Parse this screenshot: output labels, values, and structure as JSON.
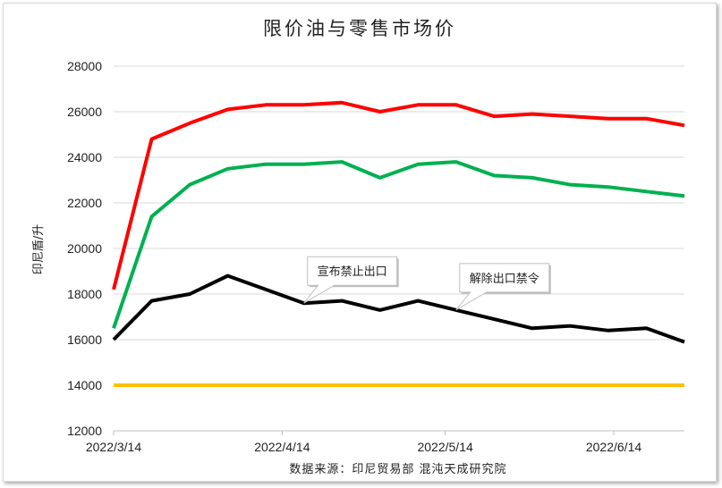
{
  "chart_data": {
    "type": "line",
    "title": "限价油与零售市场价",
    "ylabel": "印尼盾/升",
    "source": "数据来源：印尼贸易部 混沌天成研究院",
    "ylim": [
      12000,
      28000
    ],
    "yticks": [
      12000,
      14000,
      16000,
      18000,
      20000,
      22000,
      24000,
      26000,
      28000
    ],
    "x": [
      "2022-03-14",
      "2022-03-21",
      "2022-03-28",
      "2022-04-04",
      "2022-04-11",
      "2022-04-18",
      "2022-04-25",
      "2022-05-02",
      "2022-05-09",
      "2022-05-16",
      "2022-05-23",
      "2022-05-30",
      "2022-06-06",
      "2022-06-13",
      "2022-06-20",
      "2022-06-27"
    ],
    "xtick_labels": [
      {
        "date": "2022-03-14",
        "label": "2022/3/14"
      },
      {
        "date": "2022-04-14",
        "label": "2022/4/14"
      },
      {
        "date": "2022-05-14",
        "label": "2022/5/14"
      },
      {
        "date": "2022-06-14",
        "label": "2022/6/14"
      }
    ],
    "grid": true,
    "series": [
      {
        "color": "#ff0000",
        "values": [
          18200,
          24800,
          25500,
          26100,
          26300,
          26300,
          26400,
          26000,
          26300,
          26300,
          25800,
          25900,
          25800,
          25700,
          25700,
          25400
        ]
      },
      {
        "color": "#00b050",
        "values": [
          16500,
          21400,
          22800,
          23500,
          23700,
          23700,
          23800,
          23100,
          23700,
          23800,
          23200,
          23100,
          22800,
          22700,
          22500,
          22300
        ]
      },
      {
        "color": "#000000",
        "values": [
          16000,
          17700,
          18000,
          18800,
          18200,
          17600,
          17700,
          17300,
          17700,
          17300,
          16900,
          16500,
          16600,
          16400,
          16500,
          15900
        ]
      },
      {
        "color": "#ffc000",
        "values": [
          14000,
          14000,
          14000,
          14000,
          14000,
          14000,
          14000,
          14000,
          14000,
          14000,
          14000,
          14000,
          14000,
          14000,
          14000,
          14000
        ]
      }
    ],
    "annotations": [
      {
        "text": "宣布禁止出口",
        "x": "2022-04-18",
        "y": 17600
      },
      {
        "text": "解除出口禁令",
        "x": "2022-05-16",
        "y": 17300
      }
    ]
  }
}
